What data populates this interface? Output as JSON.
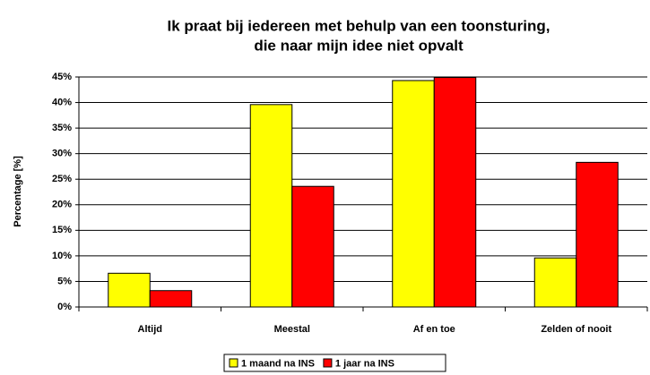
{
  "chart_data": {
    "type": "bar",
    "title": [
      "Ik praat bij iedereen met behulp van een toonsturing,",
      "die naar mijn idee niet opvalt"
    ],
    "y_label": "Percentage [%]",
    "categories": [
      "Altijd",
      "Meestal",
      "Af en toe",
      "Zelden of nooit"
    ],
    "series": [
      {
        "name": "1 maand na INS",
        "color": "#ffff00",
        "values": [
          6.6,
          39.6,
          44.3,
          9.6
        ]
      },
      {
        "name": "1 jaar na INS",
        "color": "#ff0000",
        "values": [
          3.2,
          23.6,
          44.9,
          28.3
        ]
      }
    ],
    "ylim": [
      0,
      45
    ],
    "yticks": [
      {
        "value": 0,
        "label": "0%"
      },
      {
        "value": 5,
        "label": "5%"
      },
      {
        "value": 10,
        "label": "10%"
      },
      {
        "value": 15,
        "label": "15%"
      },
      {
        "value": 20,
        "label": "20%"
      },
      {
        "value": 25,
        "label": "25%"
      },
      {
        "value": 30,
        "label": "30%"
      },
      {
        "value": 35,
        "label": "35%"
      },
      {
        "value": 40,
        "label": "40%"
      },
      {
        "value": 45,
        "label": "45%"
      }
    ],
    "grid": true,
    "legend": "bottom"
  }
}
